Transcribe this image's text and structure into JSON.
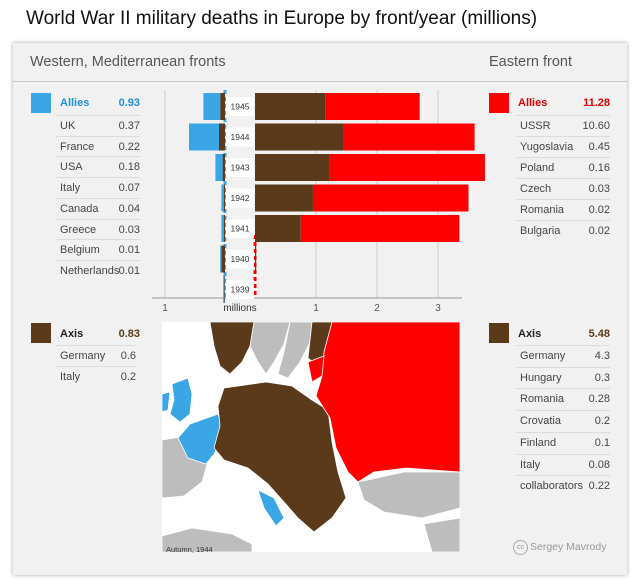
{
  "title": "World War II military deaths in Europe by front/year (millions)",
  "left_header": "Western, Mediterranean fronts",
  "right_header": "Eastern front",
  "colors": {
    "western_allies": "#3aa6e5",
    "eastern_allies": "#ff0000",
    "axis": "#5a3a1a",
    "neutral": "#bdbdbd"
  },
  "western_allies": {
    "label": "Allies",
    "value": "0.93",
    "items": [
      {
        "label": "UK",
        "value": "0.37"
      },
      {
        "label": "France",
        "value": "0.22"
      },
      {
        "label": "USA",
        "value": "0.18"
      },
      {
        "label": "Italy",
        "value": "0.07"
      },
      {
        "label": "Canada",
        "value": "0.04"
      },
      {
        "label": "Greece",
        "value": "0.03"
      },
      {
        "label": "Belgium",
        "value": "0.01"
      },
      {
        "label": "Netherlands",
        "value": "0.01"
      }
    ]
  },
  "western_axis": {
    "label": "Axis",
    "value": "0.83",
    "items": [
      {
        "label": "Germany",
        "value": "0.6"
      },
      {
        "label": "Italy",
        "value": "0.2"
      }
    ]
  },
  "eastern_allies": {
    "label": "Allies",
    "value": "11.28",
    "items": [
      {
        "label": "USSR",
        "value": "10.60"
      },
      {
        "label": "Yugoslavia",
        "value": "0.45"
      },
      {
        "label": "Poland",
        "value": "0.16"
      },
      {
        "label": "Czech",
        "value": "0.03"
      },
      {
        "label": "Romania",
        "value": "0.02"
      },
      {
        "label": "Bulgaria",
        "value": "0.02"
      }
    ]
  },
  "eastern_axis": {
    "label": "Axis",
    "value": "5.48",
    "items": [
      {
        "label": "Germany",
        "value": "4.3"
      },
      {
        "label": "Hungary",
        "value": "0.3"
      },
      {
        "label": "Romania",
        "value": "0.28"
      },
      {
        "label": "Crovatia",
        "value": "0.2"
      },
      {
        "label": "Finland",
        "value": "0.1"
      },
      {
        "label": "Italy",
        "value": "0.08"
      },
      {
        "label": "collaborators",
        "value": "0.22"
      }
    ]
  },
  "chart_data": {
    "type": "bar",
    "orientation": "horizontal",
    "categories": [
      "1945",
      "1944",
      "1943",
      "1942",
      "1941",
      "1940",
      "1939"
    ],
    "xlabel": "millions",
    "left_ticks": [
      "1"
    ],
    "right_ticks": [
      "1",
      "2",
      "3"
    ],
    "left_xlim": [
      0,
      1.2
    ],
    "right_xlim": [
      0,
      3.4
    ],
    "western": [
      {
        "allies": 0.28,
        "axis": 0.08
      },
      {
        "allies": 0.5,
        "axis": 0.1
      },
      {
        "allies": 0.12,
        "axis": 0.04
      },
      {
        "allies": 0.04,
        "axis": 0.02
      },
      {
        "allies": 0.04,
        "axis": 0.02
      },
      {
        "allies": 0.02,
        "axis": 0.06
      },
      {
        "allies": 0.02,
        "axis": 0.01
      }
    ],
    "eastern": [
      {
        "axis": 1.15,
        "allies": 1.55
      },
      {
        "axis": 1.45,
        "allies": 2.15
      },
      {
        "axis": 1.22,
        "allies": 2.55
      },
      {
        "axis": 0.95,
        "allies": 2.55
      },
      {
        "axis": 0.75,
        "allies": 2.6
      },
      {
        "axis": 0.02,
        "allies": 0.0
      },
      {
        "axis": 0.0,
        "allies": 0.0
      }
    ]
  },
  "map_caption": "Autumn, 1944",
  "credit": "Sergey Mavrody",
  "credit_icon": "creative-commons-icon"
}
